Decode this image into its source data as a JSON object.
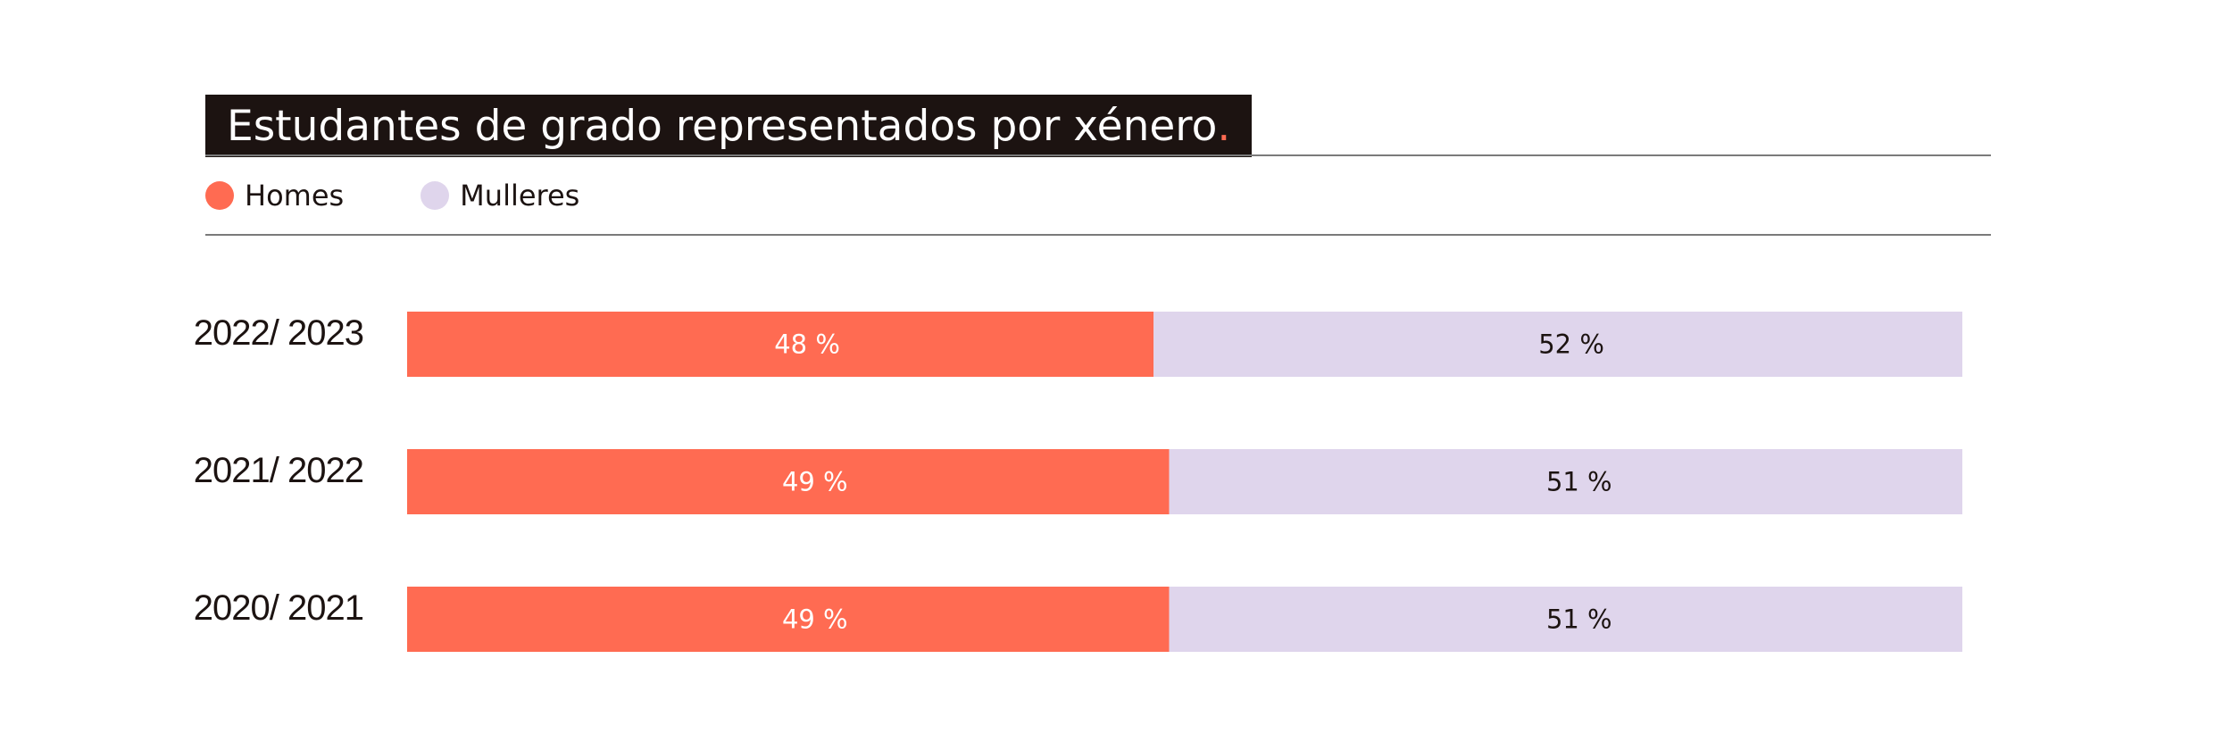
{
  "title": "Estudantes de grado representados por xénero",
  "title_dot": ".",
  "colors": {
    "men": "#ff6b52",
    "women": "#dfd5ec",
    "title_bg": "#1c1311",
    "text": "#1c1311"
  },
  "legend": [
    {
      "label": "Homes",
      "color": "#ff6b52"
    },
    {
      "label": "Mulleres",
      "color": "#dfd5ec"
    }
  ],
  "chart_data": {
    "type": "bar",
    "orientation": "horizontal",
    "stacked": true,
    "categories": [
      "2022/ 2023",
      "2021/ 2022",
      "2020/ 2021"
    ],
    "series": [
      {
        "name": "Homes",
        "values": [
          48,
          49,
          49
        ],
        "labels": [
          "48 %",
          "49 %",
          "49 %"
        ]
      },
      {
        "name": "Mulleres",
        "values": [
          52,
          51,
          51
        ],
        "labels": [
          "52 %",
          "51 %",
          "51 %"
        ]
      }
    ],
    "title": "Estudantes de grado representados por xénero",
    "xlim": [
      0,
      100
    ],
    "grid": false,
    "legend_position": "top-left"
  }
}
